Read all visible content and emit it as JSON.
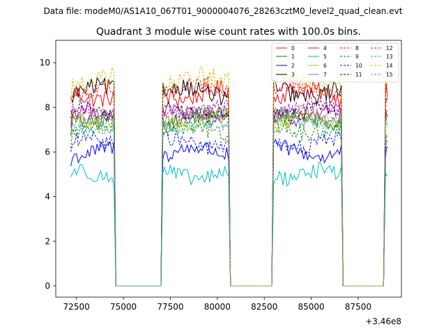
{
  "figure": {
    "suptitle": "Data file: modeM0/AS1A10_067T01_9000004076_28263cztM0_level2_quad_clean.evt"
  },
  "chart_data": {
    "type": "line",
    "title": "Quadrant 3 module wise count rates with 100.0s bins.",
    "xlabel": "",
    "ylabel": "",
    "x_offset_label": "+3.46e8",
    "xlim": [
      71400,
      89800
    ],
    "ylim": [
      -0.5,
      11.0
    ],
    "xticks": [
      72500,
      75000,
      77500,
      80000,
      82500,
      85000,
      87500
    ],
    "xtick_labels": [
      "72500",
      "75000",
      "77500",
      "80000",
      "82500",
      "85000",
      "87500"
    ],
    "yticks": [
      0,
      2,
      4,
      6,
      8,
      10
    ],
    "ytick_labels": [
      "0",
      "2",
      "4",
      "6",
      "8",
      "10"
    ],
    "legend_position": "top-right",
    "legend_ncol": 4,
    "active_segments": [
      {
        "start": 72200,
        "end": 74500,
        "step": 100
      },
      {
        "start": 77100,
        "end": 80600,
        "step": 100
      },
      {
        "start": 83000,
        "end": 86600,
        "step": 100
      },
      {
        "start": 88950,
        "end": 89050,
        "step": 50
      }
    ],
    "gap_points": [
      {
        "x": 74600,
        "y": 0.0
      },
      {
        "x": 74600,
        "y": 0.0
      },
      {
        "x": 77000,
        "y": 0.0
      },
      {
        "x": 80700,
        "y": 0.0
      },
      {
        "x": 82900,
        "y": 0.0
      },
      {
        "x": 86700,
        "y": 0.0
      },
      {
        "x": 88800,
        "y": 0.0
      }
    ],
    "series": [
      {
        "name": "0",
        "color": "#ff0000",
        "dashed": false,
        "level": 8.6,
        "noise": 0.4
      },
      {
        "name": "1",
        "color": "#008000",
        "dashed": false,
        "level": 7.5,
        "noise": 0.35
      },
      {
        "name": "2",
        "color": "#0000ff",
        "dashed": false,
        "level": 6.0,
        "noise": 0.35
      },
      {
        "name": "3",
        "color": "#000000",
        "dashed": false,
        "level": 8.7,
        "noise": 0.4
      },
      {
        "name": "4",
        "color": "#bf00bf",
        "dashed": false,
        "level": 7.7,
        "noise": 0.35
      },
      {
        "name": "5",
        "color": "#00bfbf",
        "dashed": false,
        "level": 5.0,
        "noise": 0.35
      },
      {
        "name": "6",
        "color": "#bfbf00",
        "dashed": false,
        "level": 7.4,
        "noise": 0.35
      },
      {
        "name": "7",
        "color": "#808080",
        "dashed": false,
        "level": 7.6,
        "noise": 0.35
      },
      {
        "name": "8",
        "color": "#ff0000",
        "dashed": true,
        "level": 8.8,
        "noise": 0.4
      },
      {
        "name": "9",
        "color": "#008000",
        "dashed": true,
        "level": 7.0,
        "noise": 0.35
      },
      {
        "name": "10",
        "color": "#0000ff",
        "dashed": true,
        "level": 6.4,
        "noise": 0.35
      },
      {
        "name": "11",
        "color": "#000000",
        "dashed": true,
        "level": 7.8,
        "noise": 0.35
      },
      {
        "name": "12",
        "color": "#bf00bf",
        "dashed": true,
        "level": 7.9,
        "noise": 0.35
      },
      {
        "name": "13",
        "color": "#00bfbf",
        "dashed": true,
        "level": 7.2,
        "noise": 0.35
      },
      {
        "name": "14",
        "color": "#bfbf00",
        "dashed": true,
        "level": 9.2,
        "noise": 0.45
      },
      {
        "name": "15",
        "color": "#808080",
        "dashed": true,
        "level": 7.5,
        "noise": 0.35
      }
    ]
  }
}
